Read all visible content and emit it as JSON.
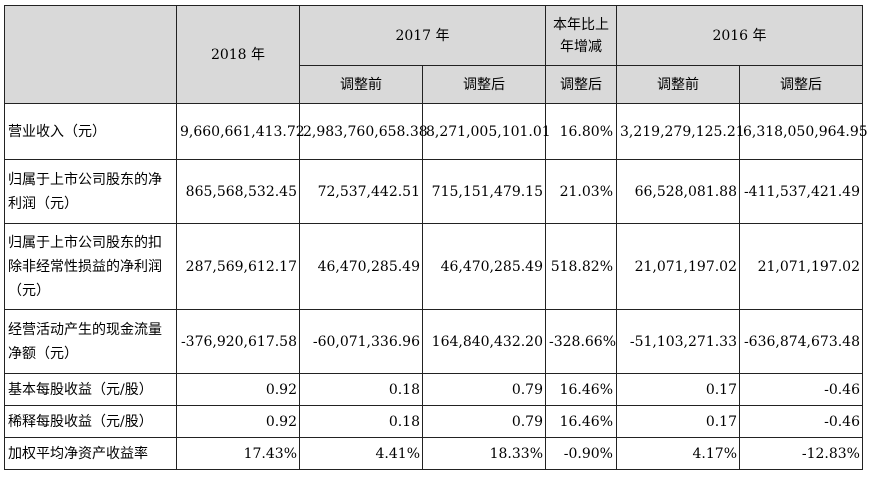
{
  "header": {
    "year_2018": "2018 年",
    "year_2017": "2017 年",
    "change": "本年比上年增减",
    "year_2016": "2016 年",
    "before_adjust": "调整前",
    "after_adjust": "调整后"
  },
  "rows": [
    {
      "label": "营业收入（元）",
      "values": [
        "9,660,661,413.72",
        "2,983,760,658.38",
        "8,271,005,101.01",
        "16.80%",
        "3,219,279,125.21",
        "6,318,050,964.95"
      ]
    },
    {
      "label": "归属于上市公司股东的净利润（元）",
      "values": [
        "865,568,532.45",
        "72,537,442.51",
        "715,151,479.15",
        "21.03%",
        "66,528,081.88",
        "-411,537,421.49"
      ]
    },
    {
      "label": "归属于上市公司股东的扣除非经常性损益的净利润（元）",
      "values": [
        "287,569,612.17",
        "46,470,285.49",
        "46,470,285.49",
        "518.82%",
        "21,071,197.02",
        "21,071,197.02"
      ]
    },
    {
      "label": "经营活动产生的现金流量净额（元）",
      "values": [
        "-376,920,617.58",
        "-60,071,336.96",
        "164,840,432.20",
        "-328.66%",
        "-51,103,271.33",
        "-636,874,673.48"
      ]
    },
    {
      "label": "基本每股收益（元/股）",
      "values": [
        "0.92",
        "0.18",
        "0.79",
        "16.46%",
        "0.17",
        "-0.46"
      ]
    },
    {
      "label": "稀释每股收益（元/股）",
      "values": [
        "0.92",
        "0.18",
        "0.79",
        "16.46%",
        "0.17",
        "-0.46"
      ]
    },
    {
      "label": "加权平均净资产收益率",
      "values": [
        "17.43%",
        "4.41%",
        "18.33%",
        "-0.90%",
        "4.17%",
        "-12.83%"
      ]
    }
  ]
}
